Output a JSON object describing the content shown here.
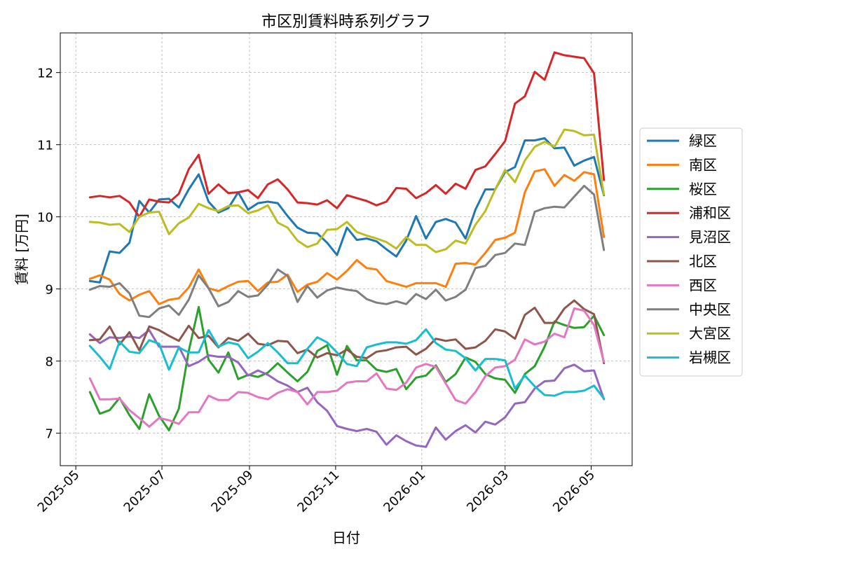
{
  "chart_data": {
    "type": "line",
    "title": "市区別賃料時系列グラフ",
    "xlabel": "日付",
    "ylabel": "賃料 [万円]",
    "xlim": [
      "2025-04-20",
      "2026-05-30"
    ],
    "ylim": [
      6.55,
      12.55
    ],
    "x_ticks": [
      "2025-05-01",
      "2025-07-01",
      "2025-09-01",
      "2025-11-01",
      "2026-01-01",
      "2026-03-01",
      "2026-05-01"
    ],
    "x_tick_labels": [
      "2025-05",
      "2025-07",
      "2025-09",
      "2025-11",
      "2026-01",
      "2026-03",
      "2026-05"
    ],
    "y_ticks": [
      7,
      8,
      9,
      10,
      11,
      12
    ],
    "y_tick_labels": [
      "7",
      "8",
      "9",
      "10",
      "11",
      "12"
    ],
    "grid": true,
    "legend_position": "right",
    "x": [
      "2025-05-11",
      "2025-05-18",
      "2025-05-25",
      "2025-06-01",
      "2025-06-08",
      "2025-06-15",
      "2025-06-22",
      "2025-06-29",
      "2025-07-06",
      "2025-07-13",
      "2025-07-20",
      "2025-07-27",
      "2025-08-03",
      "2025-08-10",
      "2025-08-17",
      "2025-08-24",
      "2025-08-31",
      "2025-09-07",
      "2025-09-14",
      "2025-09-21",
      "2025-09-28",
      "2025-10-05",
      "2025-10-12",
      "2025-10-19",
      "2025-10-26",
      "2025-11-02",
      "2025-11-09",
      "2025-11-16",
      "2025-11-23",
      "2025-11-30",
      "2025-12-07",
      "2025-12-14",
      "2025-12-21",
      "2025-12-28",
      "2026-01-04",
      "2026-01-11",
      "2026-01-18",
      "2026-01-25",
      "2026-02-01",
      "2026-02-08",
      "2026-02-15",
      "2026-02-22",
      "2026-03-01",
      "2026-03-08",
      "2026-03-15",
      "2026-03-22",
      "2026-03-29",
      "2026-04-05",
      "2026-04-12",
      "2026-04-19",
      "2026-04-26",
      "2026-05-03",
      "2026-05-10"
    ],
    "series": [
      {
        "name": "緑区",
        "color": "#1f77b4",
        "values": [
          9.11,
          9.09,
          9.52,
          9.5,
          9.64,
          10.22,
          10.06,
          10.24,
          10.25,
          10.13,
          10.38,
          10.59,
          10.21,
          10.06,
          10.12,
          10.34,
          10.1,
          10.19,
          10.21,
          10.19,
          10.01,
          9.85,
          9.78,
          9.77,
          9.64,
          9.47,
          9.85,
          9.68,
          9.7,
          9.66,
          9.55,
          9.45,
          9.67,
          10.01,
          9.7,
          9.93,
          9.97,
          9.92,
          9.7,
          10.1,
          10.38,
          10.38,
          10.62,
          10.69,
          11.06,
          11.06,
          11.09,
          10.95,
          10.96,
          10.71,
          10.78,
          10.83,
          10.3
        ]
      },
      {
        "name": "南区",
        "color": "#ff7f0e",
        "values": [
          9.14,
          9.19,
          9.13,
          8.93,
          8.84,
          8.92,
          8.97,
          8.79,
          8.85,
          8.87,
          9.02,
          9.27,
          9.01,
          8.97,
          9.04,
          9.1,
          9.11,
          8.97,
          9.09,
          9.1,
          9.2,
          8.96,
          9.06,
          9.1,
          9.22,
          9.13,
          9.25,
          9.4,
          9.29,
          9.27,
          9.11,
          9.07,
          9.03,
          9.08,
          9.08,
          9.08,
          9.03,
          9.35,
          9.36,
          9.34,
          9.5,
          9.68,
          9.71,
          9.78,
          10.34,
          10.63,
          10.66,
          10.43,
          10.58,
          10.5,
          10.62,
          10.59,
          9.72
        ]
      },
      {
        "name": "桜区",
        "color": "#2ca02c",
        "values": [
          7.57,
          7.27,
          7.32,
          7.49,
          7.25,
          7.06,
          7.54,
          7.24,
          7.04,
          7.34,
          8.14,
          8.75,
          8.02,
          7.84,
          8.12,
          7.75,
          7.81,
          7.78,
          7.84,
          7.97,
          7.84,
          7.72,
          7.85,
          8.14,
          8.22,
          7.81,
          8.21,
          8.01,
          8.01,
          7.88,
          7.85,
          7.89,
          7.61,
          7.77,
          7.8,
          7.94,
          7.71,
          7.82,
          8.05,
          7.99,
          7.82,
          7.76,
          7.74,
          7.56,
          7.82,
          7.93,
          8.2,
          8.55,
          8.5,
          8.46,
          8.47,
          8.63,
          8.36
        ]
      },
      {
        "name": "浦和区",
        "color": "#d62728",
        "values": [
          10.27,
          10.29,
          10.27,
          10.29,
          10.2,
          10.0,
          10.24,
          10.21,
          10.2,
          10.32,
          10.66,
          10.86,
          10.32,
          10.45,
          10.33,
          10.34,
          10.37,
          10.26,
          10.45,
          10.52,
          10.38,
          10.2,
          10.19,
          10.17,
          10.23,
          10.12,
          10.3,
          10.26,
          10.22,
          10.16,
          10.21,
          10.4,
          10.39,
          10.26,
          10.33,
          10.44,
          10.32,
          10.46,
          10.39,
          10.65,
          10.7,
          10.87,
          11.05,
          11.57,
          11.67,
          12.01,
          11.9,
          12.28,
          12.24,
          12.22,
          12.2,
          11.99,
          10.51
        ]
      },
      {
        "name": "見沼区",
        "color": "#9467bd",
        "values": [
          8.37,
          8.25,
          8.33,
          8.32,
          8.34,
          8.32,
          8.43,
          8.2,
          8.2,
          8.2,
          7.93,
          7.99,
          8.08,
          8.06,
          8.06,
          7.98,
          7.8,
          7.87,
          7.81,
          7.72,
          7.66,
          7.57,
          7.63,
          7.43,
          7.31,
          7.1,
          7.06,
          7.03,
          7.06,
          7.02,
          6.84,
          6.97,
          6.89,
          6.83,
          6.81,
          7.08,
          6.91,
          7.03,
          7.11,
          7.01,
          7.16,
          7.12,
          7.22,
          7.41,
          7.43,
          7.62,
          7.72,
          7.73,
          7.9,
          7.95,
          7.86,
          7.87,
          7.47
        ]
      },
      {
        "name": "北区",
        "color": "#8c564b",
        "values": [
          8.29,
          8.3,
          8.48,
          8.23,
          8.4,
          8.15,
          8.48,
          8.43,
          8.35,
          8.28,
          8.49,
          8.32,
          8.35,
          8.19,
          8.32,
          8.28,
          8.38,
          8.24,
          8.22,
          8.28,
          8.27,
          8.11,
          8.16,
          8.05,
          8.11,
          8.08,
          8.16,
          8.06,
          8.04,
          8.13,
          8.15,
          8.19,
          8.2,
          8.09,
          8.17,
          8.31,
          8.28,
          8.3,
          8.17,
          8.19,
          8.28,
          8.44,
          8.41,
          8.31,
          8.64,
          8.74,
          8.53,
          8.53,
          8.73,
          8.84,
          8.72,
          8.65,
          7.97
        ]
      },
      {
        "name": "西区",
        "color": "#e377c2",
        "values": [
          7.76,
          7.47,
          7.47,
          7.48,
          7.32,
          7.21,
          7.09,
          7.21,
          7.18,
          7.13,
          7.29,
          7.29,
          7.52,
          7.46,
          7.46,
          7.57,
          7.56,
          7.5,
          7.47,
          7.56,
          7.61,
          7.57,
          7.4,
          7.57,
          7.57,
          7.59,
          7.7,
          7.72,
          7.72,
          7.83,
          7.62,
          7.6,
          7.7,
          7.91,
          7.96,
          7.92,
          7.69,
          7.46,
          7.41,
          7.57,
          7.79,
          7.91,
          7.93,
          8.02,
          8.3,
          8.23,
          8.27,
          8.38,
          8.33,
          8.73,
          8.7,
          8.5,
          7.99
        ]
      },
      {
        "name": "中央区",
        "color": "#7f7f7f",
        "values": [
          8.99,
          9.04,
          9.03,
          9.08,
          8.94,
          8.63,
          8.61,
          8.73,
          8.77,
          8.64,
          8.85,
          9.19,
          9.01,
          8.76,
          8.82,
          8.97,
          8.89,
          8.91,
          9.06,
          9.27,
          9.18,
          8.82,
          9.04,
          8.88,
          8.98,
          9.02,
          8.99,
          8.97,
          8.86,
          8.81,
          8.79,
          8.83,
          8.79,
          8.93,
          8.86,
          8.99,
          8.84,
          8.89,
          8.99,
          9.29,
          9.32,
          9.47,
          9.5,
          9.63,
          9.61,
          10.07,
          10.12,
          10.14,
          10.13,
          10.28,
          10.43,
          10.31,
          9.54
        ]
      },
      {
        "name": "大宮区",
        "color": "#bcbd22",
        "values": [
          9.93,
          9.92,
          9.89,
          9.9,
          9.79,
          10.0,
          10.06,
          10.07,
          9.76,
          9.91,
          9.99,
          10.18,
          10.12,
          10.08,
          10.15,
          10.16,
          10.05,
          10.09,
          10.16,
          9.92,
          9.85,
          9.67,
          9.58,
          9.63,
          9.82,
          9.83,
          9.93,
          9.79,
          9.74,
          9.7,
          9.65,
          9.56,
          9.72,
          9.61,
          9.61,
          9.51,
          9.55,
          9.67,
          9.63,
          9.89,
          10.08,
          10.38,
          10.65,
          10.48,
          10.78,
          10.97,
          11.04,
          10.97,
          11.21,
          11.19,
          11.13,
          11.14,
          10.31
        ]
      },
      {
        "name": "岩槻区",
        "color": "#17becf",
        "values": [
          8.21,
          8.06,
          7.89,
          8.27,
          8.13,
          8.11,
          8.29,
          8.24,
          7.88,
          8.19,
          8.12,
          8.12,
          8.43,
          8.2,
          8.26,
          8.23,
          8.04,
          8.13,
          8.25,
          8.12,
          7.97,
          7.97,
          8.17,
          8.33,
          8.26,
          8.12,
          7.96,
          7.93,
          8.19,
          8.23,
          8.26,
          8.26,
          8.24,
          8.29,
          8.44,
          8.25,
          8.16,
          8.14,
          8.04,
          7.87,
          8.03,
          8.03,
          8.01,
          7.62,
          7.8,
          7.65,
          7.53,
          7.52,
          7.57,
          7.57,
          7.59,
          7.66,
          7.48
        ]
      }
    ]
  }
}
